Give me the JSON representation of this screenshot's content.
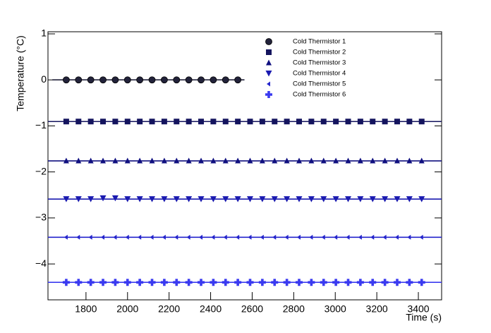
{
  "chart_data": {
    "type": "scatter",
    "x_label": "Time (s)",
    "y_label": "Temperature (°C)",
    "xlim": [
      1617,
      3512
    ],
    "ylim": [
      -4.78,
      1.046
    ],
    "xticks": [
      1800,
      2000,
      2200,
      2400,
      2600,
      2800,
      3000,
      3200,
      3400
    ],
    "yticks": [
      {
        "value": -4,
        "label": "−4"
      },
      {
        "value": -3,
        "label": "−3"
      },
      {
        "value": -2,
        "label": "−2"
      },
      {
        "value": -1,
        "label": "−1"
      },
      0,
      1
    ],
    "x": [
      1705,
      1764,
      1823,
      1882,
      1941,
      2000,
      2059,
      2118,
      2177,
      2236,
      2295,
      2354,
      2413,
      2472,
      2531,
      2590,
      2649,
      2708,
      2767,
      2826,
      2885,
      2944,
      3003,
      3062,
      3121,
      3180,
      3239,
      3298,
      3357,
      3416
    ],
    "series": [
      {
        "name": "Cold Thermistor 1",
        "color": "#22223a",
        "marker": "circle",
        "fit": 0,
        "fit_xlim": [
          1638,
          2563
        ],
        "values": [
          0,
          0,
          0,
          0,
          0,
          0,
          0,
          0,
          0,
          0,
          0,
          0,
          0,
          0,
          0,
          null,
          null,
          null,
          null,
          null,
          null,
          null,
          null,
          null,
          null,
          null,
          null,
          null,
          null,
          null
        ]
      },
      {
        "name": "Cold Thermistor 2",
        "color": "#14145e",
        "marker": "square",
        "fit": -0.905,
        "values": [
          -0.905,
          -0.905,
          -0.905,
          -0.905,
          -0.905,
          -0.905,
          -0.905,
          -0.905,
          -0.905,
          -0.905,
          -0.905,
          -0.905,
          -0.905,
          -0.905,
          -0.905,
          -0.905,
          -0.905,
          -0.905,
          -0.905,
          -0.905,
          -0.905,
          -0.905,
          -0.905,
          -0.905,
          -0.905,
          -0.905,
          -0.905,
          -0.905,
          -0.905,
          -0.905
        ]
      },
      {
        "name": "Cold Thermistor 3",
        "color": "#101080",
        "marker": "triangle-up",
        "fit": -1.76,
        "values": [
          -1.76,
          -1.76,
          -1.76,
          -1.76,
          -1.76,
          -1.76,
          -1.76,
          -1.76,
          -1.76,
          -1.76,
          -1.76,
          -1.76,
          -1.76,
          -1.76,
          -1.76,
          -1.76,
          -1.76,
          -1.76,
          -1.76,
          -1.76,
          -1.76,
          -1.76,
          -1.76,
          -1.76,
          -1.76,
          -1.76,
          -1.76,
          -1.76,
          -1.76,
          -1.76
        ]
      },
      {
        "name": "Cold Thermistor 4",
        "color": "#1a1ab0",
        "marker": "triangle-down",
        "fit": -2.59,
        "values": [
          -2.59,
          -2.59,
          -2.59,
          -2.57,
          -2.57,
          -2.59,
          -2.59,
          -2.59,
          -2.59,
          -2.59,
          -2.59,
          -2.59,
          -2.59,
          -2.59,
          -2.59,
          -2.59,
          -2.59,
          -2.59,
          -2.59,
          -2.59,
          -2.59,
          -2.59,
          -2.59,
          -2.59,
          -2.59,
          -2.59,
          -2.59,
          -2.59,
          -2.59,
          -2.59
        ]
      },
      {
        "name": "Cold Thermistor 5",
        "color": "#2323cc",
        "marker": "triangle-left",
        "fit": -3.42,
        "values": [
          -3.42,
          -3.42,
          -3.42,
          -3.42,
          -3.42,
          -3.42,
          -3.42,
          -3.42,
          -3.42,
          -3.42,
          -3.42,
          -3.42,
          -3.42,
          -3.42,
          -3.42,
          -3.42,
          -3.42,
          -3.42,
          -3.42,
          -3.42,
          -3.42,
          -3.42,
          -3.42,
          -3.42,
          -3.42,
          -3.42,
          -3.42,
          -3.42,
          -3.42,
          -3.42
        ]
      },
      {
        "name": "Cold Thermistor 6",
        "color": "#3a3af0",
        "marker": "plus",
        "fit": -4.4,
        "values": [
          -4.4,
          -4.4,
          -4.4,
          -4.4,
          -4.4,
          -4.4,
          -4.4,
          -4.4,
          -4.4,
          -4.4,
          -4.4,
          -4.4,
          -4.4,
          -4.4,
          -4.4,
          -4.4,
          -4.4,
          -4.4,
          -4.4,
          -4.4,
          -4.4,
          -4.4,
          -4.4,
          -4.4,
          -4.4,
          -4.4,
          -4.4,
          -4.4,
          -4.4,
          -4.4
        ]
      }
    ]
  }
}
